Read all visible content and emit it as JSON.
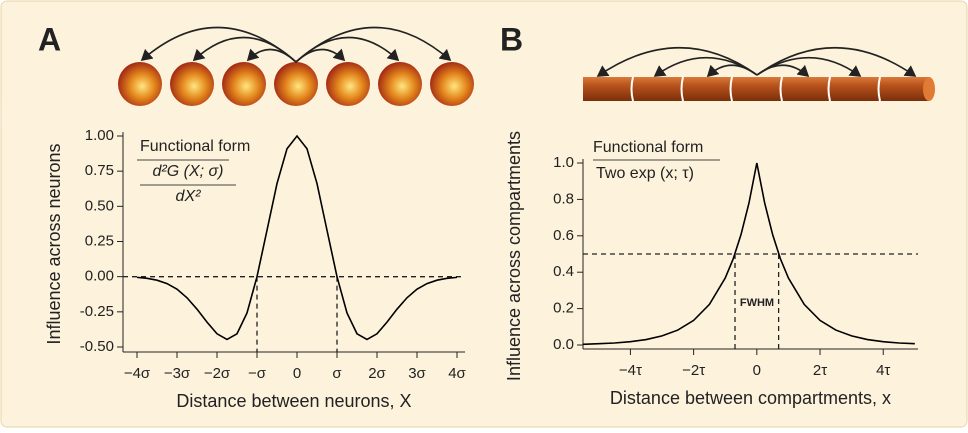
{
  "chart_data": [
    {
      "type": "line",
      "panel": "A",
      "x_label": "Distance between neurons, X",
      "y_label": "Influence across neurons",
      "annotations": [
        "Functional form",
        "d²G (X; σ)",
        "dX²"
      ],
      "x": [
        -4,
        -3.75,
        -3.5,
        -3.25,
        -3,
        -2.75,
        -2.5,
        -2.25,
        -2,
        -1.75,
        -1.5,
        -1.25,
        -1,
        -0.75,
        -0.5,
        -0.25,
        0,
        0.25,
        0.5,
        0.75,
        1,
        1.25,
        1.5,
        1.75,
        2,
        2.25,
        2.5,
        2.75,
        3,
        3.25,
        3.5,
        3.75,
        4
      ],
      "values": [
        -0.005,
        -0.012,
        -0.025,
        -0.049,
        -0.089,
        -0.15,
        -0.231,
        -0.323,
        -0.406,
        -0.446,
        -0.406,
        -0.258,
        0,
        0.33,
        0.662,
        0.909,
        1,
        0.909,
        0.662,
        0.33,
        0,
        -0.258,
        -0.406,
        -0.446,
        -0.406,
        -0.323,
        -0.231,
        -0.15,
        -0.089,
        -0.049,
        -0.025,
        -0.012,
        -0.005
      ],
      "color": "#000000",
      "xlim": [
        -4.35,
        4.2
      ],
      "ylim": [
        -0.5,
        1.0
      ],
      "xticks": [
        {
          "value": -4,
          "label": "−4σ"
        },
        {
          "value": -3,
          "label": "−3σ"
        },
        {
          "value": -2,
          "label": "−2σ"
        },
        {
          "value": -1,
          "label": "−σ"
        },
        0,
        {
          "value": 1,
          "label": "σ"
        },
        {
          "value": 2,
          "label": "2σ"
        },
        {
          "value": 3,
          "label": "3σ"
        },
        {
          "value": 4,
          "label": "4σ"
        }
      ],
      "yticks": [
        {
          "value": -0.5,
          "label": "-0.50"
        },
        {
          "value": -0.25,
          "label": "-0.25"
        },
        {
          "value": 0,
          "label": "0.00"
        },
        {
          "value": 0.25,
          "label": "0.25"
        },
        {
          "value": 0.5,
          "label": "0.50"
        },
        {
          "value": 0.75,
          "label": "0.75"
        },
        {
          "value": 1,
          "label": "1.00"
        }
      ],
      "hline": 0,
      "vlines": [
        -1,
        1
      ],
      "grid": false
    },
    {
      "type": "line",
      "panel": "B",
      "x_label": "Distance between compartments, x",
      "y_label": "Influence across compartments",
      "annotations": [
        "Functional form",
        "Two exp (x; τ)",
        "FWHM"
      ],
      "x": [
        -5.5,
        -5,
        -4.5,
        -4,
        -3.5,
        -3,
        -2.5,
        -2,
        -1.5,
        -1,
        -0.75,
        -0.5,
        -0.25,
        0,
        0.25,
        0.5,
        0.75,
        1,
        1.5,
        2,
        2.5,
        3,
        3.5,
        4,
        4.5,
        5
      ],
      "values": [
        0.004,
        0.007,
        0.011,
        0.018,
        0.03,
        0.05,
        0.082,
        0.135,
        0.223,
        0.368,
        0.472,
        0.607,
        0.779,
        1,
        0.779,
        0.607,
        0.472,
        0.368,
        0.223,
        0.135,
        0.082,
        0.05,
        0.03,
        0.018,
        0.011,
        0.007
      ],
      "color": "#000000",
      "xlim": [
        -5.5,
        5.1
      ],
      "ylim": [
        0,
        1.0
      ],
      "xticks": [
        {
          "value": -4,
          "label": "−4τ"
        },
        {
          "value": -2,
          "label": "−2τ"
        },
        0,
        {
          "value": 2,
          "label": "2τ"
        },
        {
          "value": 4,
          "label": "4τ"
        }
      ],
      "yticks": [
        {
          "value": 0,
          "label": "0.0"
        },
        {
          "value": 0.2,
          "label": "0.2"
        },
        {
          "value": 0.4,
          "label": "0.4"
        },
        {
          "value": 0.6,
          "label": "0.6"
        },
        {
          "value": 0.8,
          "label": "0.8"
        },
        {
          "value": 1,
          "label": "1.0"
        }
      ],
      "hline": 0.5,
      "vlines": [
        -0.69,
        0.69
      ],
      "grid": false
    }
  ]
}
